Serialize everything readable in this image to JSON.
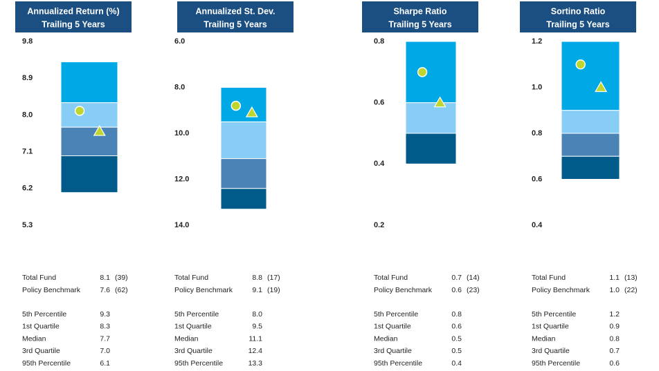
{
  "chart_data": [
    {
      "type": "floating_bar",
      "title": "Annualized Return (%)",
      "subtitle": "Trailing 5 Years",
      "ylim": [
        5.3,
        9.8
      ],
      "yticks": [
        9.8,
        8.9,
        {
          "value": 8,
          "label": "8.0"
        },
        7.1,
        6.2,
        5.3
      ],
      "colors": [
        "#00a9e6",
        "#87cdf5",
        "#4a84b7",
        "#005b8b"
      ],
      "percentiles": {
        "names": [
          "5th Percentile",
          "1st Quartile",
          "Median",
          "3rd Quartile",
          "95th Percentile"
        ],
        "values": [
          9.3,
          8.3,
          7.7,
          7.0,
          6.1
        ],
        "value_labels": [
          "9.3",
          "8.3",
          "7.7",
          "7.0",
          "6.1"
        ]
      },
      "series": [
        {
          "name": "Total Fund",
          "marker": "circle",
          "color": "#bfd630",
          "values": [
            8.1
          ],
          "value_labels": [
            "8.1"
          ],
          "rank": "(39)"
        },
        {
          "name": "Policy Benchmark",
          "marker": "triangle",
          "color": "#bfd630",
          "values": [
            7.6
          ],
          "value_labels": [
            "7.6"
          ],
          "rank": "(62)"
        }
      ]
    },
    {
      "type": "floating_bar",
      "title": "Annualized St. Dev.",
      "subtitle": "Trailing 5 Years",
      "ylim": [
        14,
        6
      ],
      "yticks": [
        {
          "value": 6,
          "label": "6.0"
        },
        {
          "value": 8,
          "label": "8.0"
        },
        {
          "value": 10,
          "label": "10.0"
        },
        {
          "value": 12,
          "label": "12.0"
        },
        {
          "value": 14,
          "label": "14.0"
        }
      ],
      "colors": [
        "#00a9e6",
        "#87cdf5",
        "#4a84b7",
        "#005b8b"
      ],
      "percentiles": {
        "names": [
          "5th Percentile",
          "1st Quartile",
          "Median",
          "3rd Quartile",
          "95th Percentile"
        ],
        "values": [
          8.0,
          9.5,
          11.1,
          12.4,
          13.3
        ],
        "value_labels": [
          "8.0",
          "9.5",
          "11.1",
          "12.4",
          "13.3"
        ]
      },
      "series": [
        {
          "name": "Total Fund",
          "marker": "circle",
          "color": "#bfd630",
          "values": [
            8.8
          ],
          "value_labels": [
            "8.8"
          ],
          "rank": "(17)"
        },
        {
          "name": "Policy Benchmark",
          "marker": "triangle",
          "color": "#bfd630",
          "values": [
            9.1
          ],
          "value_labels": [
            "9.1"
          ],
          "rank": "(19)"
        }
      ]
    },
    {
      "type": "floating_bar",
      "title": "Sharpe Ratio",
      "subtitle": "Trailing 5 Years",
      "ylim": [
        0.2,
        0.8
      ],
      "yticks": [
        0.8,
        0.6,
        0.4,
        0.2
      ],
      "colors": [
        "#00a9e6",
        "#87cdf5",
        "#4a84b7",
        "#005b8b"
      ],
      "percentiles": {
        "names": [
          "5th Percentile",
          "1st Quartile",
          "Median",
          "3rd Quartile",
          "95th Percentile"
        ],
        "values": [
          0.8,
          0.6,
          0.5,
          0.5,
          0.4
        ],
        "value_labels": [
          "0.8",
          "0.6",
          "0.5",
          "0.5",
          "0.4"
        ]
      },
      "series": [
        {
          "name": "Total Fund",
          "marker": "circle",
          "color": "#bfd630",
          "values": [
            0.7
          ],
          "value_labels": [
            "0.7"
          ],
          "rank": "(14)"
        },
        {
          "name": "Policy Benchmark",
          "marker": "triangle",
          "color": "#bfd630",
          "values": [
            0.6
          ],
          "value_labels": [
            "0.6"
          ],
          "rank": "(23)"
        }
      ]
    },
    {
      "type": "floating_bar",
      "title": "Sortino Ratio",
      "subtitle": "Trailing 5 Years",
      "ylim": [
        0.4,
        1.2
      ],
      "yticks": [
        1.2,
        {
          "value": 1,
          "label": "1.0"
        },
        0.8,
        0.6,
        0.4
      ],
      "colors": [
        "#00a9e6",
        "#87cdf5",
        "#4a84b7",
        "#005b8b"
      ],
      "percentiles": {
        "names": [
          "5th Percentile",
          "1st Quartile",
          "Median",
          "3rd Quartile",
          "95th Percentile"
        ],
        "values": [
          1.2,
          0.9,
          0.8,
          0.7,
          0.6
        ],
        "value_labels": [
          "1.2",
          "0.9",
          "0.8",
          "0.7",
          "0.6"
        ]
      },
      "series": [
        {
          "name": "Total Fund",
          "marker": "circle",
          "color": "#bfd630",
          "values": [
            1.1
          ],
          "value_labels": [
            "1.1"
          ],
          "rank": "(13)"
        },
        {
          "name": "Policy Benchmark",
          "marker": "triangle",
          "color": "#bfd630",
          "values": [
            1.0
          ],
          "value_labels": [
            "1.0"
          ],
          "rank": "(22)"
        }
      ]
    }
  ]
}
